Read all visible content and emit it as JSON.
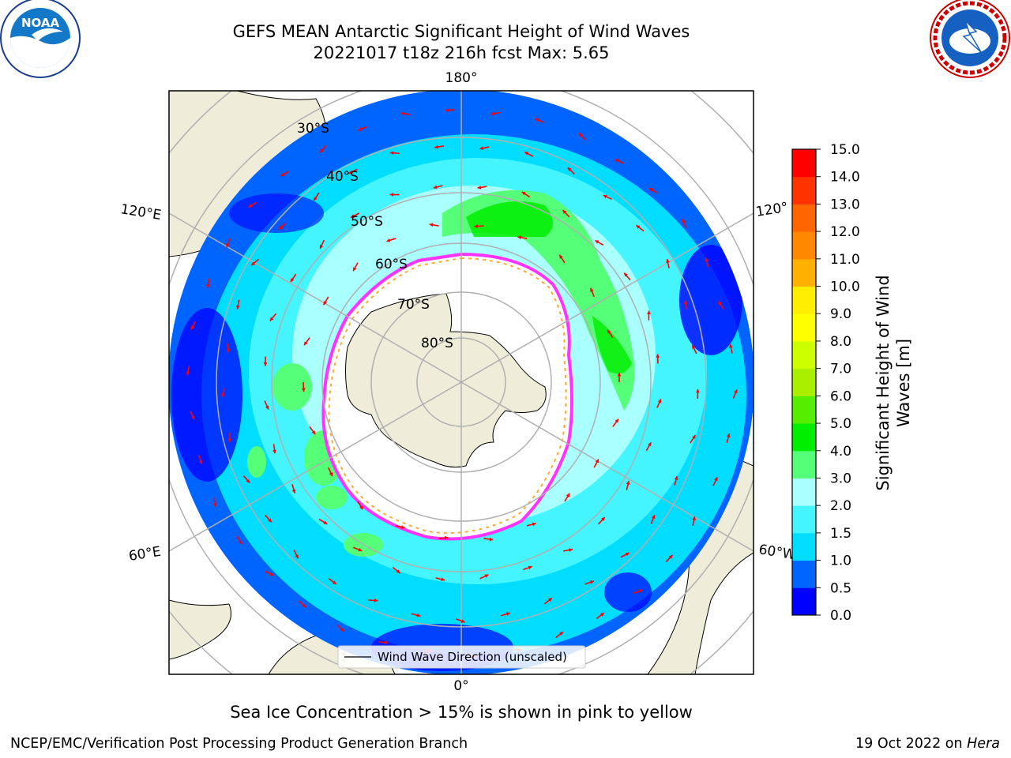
{
  "title": {
    "line1": "GEFS MEAN Antarctic Significant Height of Wind Waves",
    "line2": "20221017 t18z 216h fcst   Max: 5.65"
  },
  "map": {
    "projection": "south-polar-stereographic",
    "longitude_labels": [
      "180°",
      "120°E",
      "120°",
      "60°E",
      "60°W",
      "0°"
    ],
    "latitude_labels": [
      "30°S",
      "40°S",
      "50°S",
      "60°S",
      "70°S",
      "80°S"
    ],
    "legend": {
      "label": "Wind Wave Direction (unscaled)",
      "placement": "bottom-center"
    },
    "arrow_color": "#ff0000",
    "land_color": "#efedd9",
    "sea_ice_colors": [
      "#ff33ff",
      "#ffaa33",
      "#ffee55"
    ]
  },
  "colorbar": {
    "label_line1": "Significant Height of Wind",
    "label_line2": "Waves [m]",
    "ticks": [
      "15.0",
      "14.0",
      "13.0",
      "12.0",
      "11.0",
      "10.0",
      "9.0",
      "8.0",
      "7.0",
      "6.0",
      "5.0",
      "4.0",
      "3.0",
      "2.0",
      "1.5",
      "1.0",
      "0.5",
      "0.0"
    ],
    "colors_bottom_to_top": [
      "#0000ff",
      "#0064ff",
      "#00ddff",
      "#44f5ff",
      "#aaffff",
      "#55ff77",
      "#00ee00",
      "#55ee00",
      "#aaee00",
      "#ccff00",
      "#ffff00",
      "#ffee00",
      "#ffb000",
      "#ff8800",
      "#ff6600",
      "#ff3300",
      "#ff0000"
    ]
  },
  "caption": "Sea Ice Concentration > 15% is shown in pink to yellow",
  "footer": {
    "left": "NCEP/EMC/Verification Post Processing Product Generation Branch",
    "right_date": "19 Oct 2022 on ",
    "right_host": "Hera"
  },
  "logos": {
    "left": "NOAA",
    "right": "NATIONAL WEATHER SERVICE"
  }
}
